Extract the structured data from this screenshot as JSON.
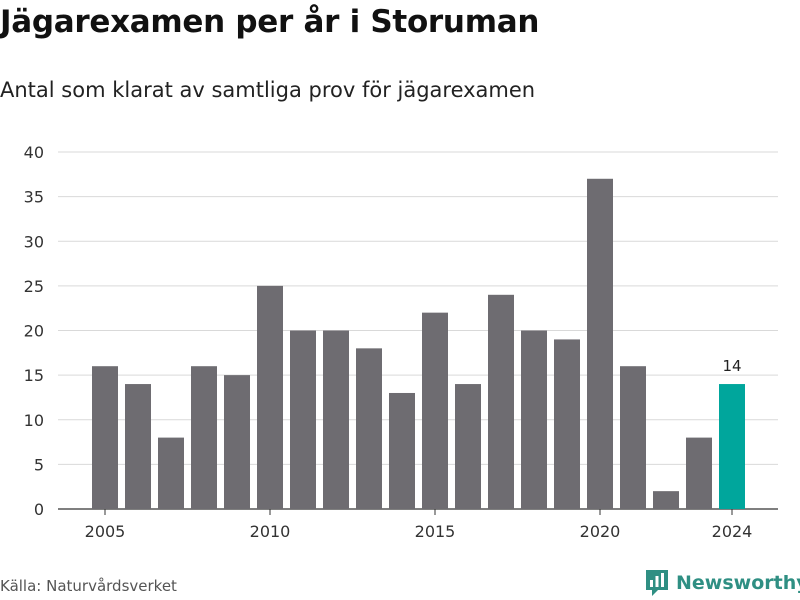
{
  "title": "Jägarexamen per år i Storuman",
  "subtitle": "Antal som klarat av samtliga prov för jägarexamen",
  "source": "Källa: Naturvårdsverket",
  "brand": "Newsworthy",
  "colors": {
    "bar": "#6e6c71",
    "highlight": "#00a69c",
    "grid": "#d9d9d9",
    "brand": "#2f8f83"
  },
  "chart_data": {
    "type": "bar",
    "categories": [
      2005,
      2006,
      2007,
      2008,
      2009,
      2010,
      2011,
      2012,
      2013,
      2014,
      2015,
      2016,
      2017,
      2018,
      2019,
      2020,
      2021,
      2022,
      2023,
      2024
    ],
    "values": [
      16,
      14,
      8,
      16,
      15,
      25,
      20,
      20,
      18,
      13,
      22,
      14,
      24,
      20,
      19,
      37,
      16,
      2,
      8,
      14
    ],
    "highlight_category": 2024,
    "data_labels": [
      {
        "category": 2024,
        "text": "14"
      }
    ],
    "x_ticks": [
      2005,
      2010,
      2015,
      2020,
      2024
    ],
    "y_ticks": [
      0,
      5,
      10,
      15,
      20,
      25,
      30,
      35,
      40
    ],
    "ylim": [
      0,
      40
    ],
    "grid": true,
    "legend": "none"
  }
}
